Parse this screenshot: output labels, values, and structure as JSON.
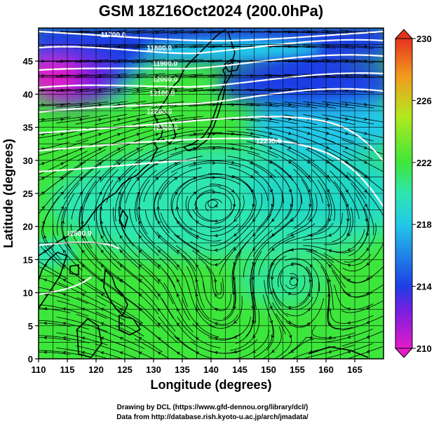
{
  "title": "GSM 18Z16Oct2024 (200.0hPa)",
  "xlabel": "Longitude (degrees)",
  "ylabel": "Latitude  (degrees)",
  "footer": {
    "line1": "Drawing by DCL (https://www.gfd-dennou.org/library/dcl/)",
    "line2": "Data from http://database.rish.kyoto-u.ac.jp/arch/jmadata/"
  },
  "chart_data": {
    "type": "heatmap",
    "xlim": [
      110,
      170
    ],
    "ylim": [
      0,
      50
    ],
    "xticks": [
      110,
      115,
      120,
      125,
      130,
      135,
      140,
      145,
      150,
      155,
      160,
      165
    ],
    "yticks": [
      0,
      5,
      10,
      15,
      20,
      25,
      30,
      35,
      40,
      45
    ],
    "grid": true,
    "colorbar": {
      "ticks": [
        210,
        214,
        218,
        222,
        226,
        230
      ],
      "range": [
        210,
        230
      ]
    },
    "colors": {
      "magenta": "#e41cc8",
      "purple": "#7a1ee0",
      "blue": "#1e3ee6",
      "cyan": "#22c8e8",
      "aqua_green": "#2ee6b0",
      "green": "#3ee63a",
      "yellow_green": "#b4e81e",
      "orange": "#f29a1e",
      "red": "#e6321e"
    },
    "contour_labels": [
      {
        "text": "11700.0",
        "lon": 123,
        "lat": 48.6
      },
      {
        "text": "11800.0",
        "lon": 131,
        "lat": 46.6
      },
      {
        "text": "11900.0",
        "lon": 132,
        "lat": 44.3
      },
      {
        "text": "12000.0",
        "lon": 132,
        "lat": 41.9
      },
      {
        "text": "12100.0",
        "lon": 131.5,
        "lat": 39.8
      },
      {
        "text": "12200.0",
        "lon": 131,
        "lat": 37.0
      },
      {
        "text": "12300.0",
        "lon": 132,
        "lat": 34.6
      },
      {
        "text": "12200.0",
        "lon": 150,
        "lat": 32.6
      },
      {
        "text": "12500.0",
        "lon": 117,
        "lat": 18.6
      }
    ]
  }
}
